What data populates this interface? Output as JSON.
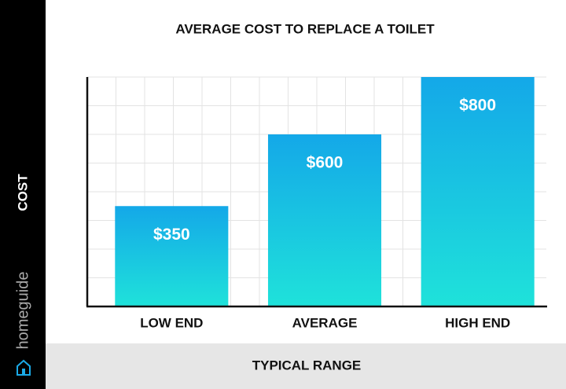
{
  "chart_data": {
    "type": "bar",
    "title": "AVERAGE COST TO REPLACE A TOILET",
    "categories": [
      "LOW END",
      "AVERAGE",
      "HIGH END"
    ],
    "values": [
      350,
      600,
      800
    ],
    "value_labels": [
      "$350",
      "$600",
      "$800"
    ],
    "gradient": [
      "#14a8e8",
      "#1fe2da"
    ],
    "ylim": [
      0,
      800
    ],
    "grid": true,
    "y_label": "COST",
    "x_label": "TYPICAL RANGE",
    "brand": "homeguide"
  }
}
